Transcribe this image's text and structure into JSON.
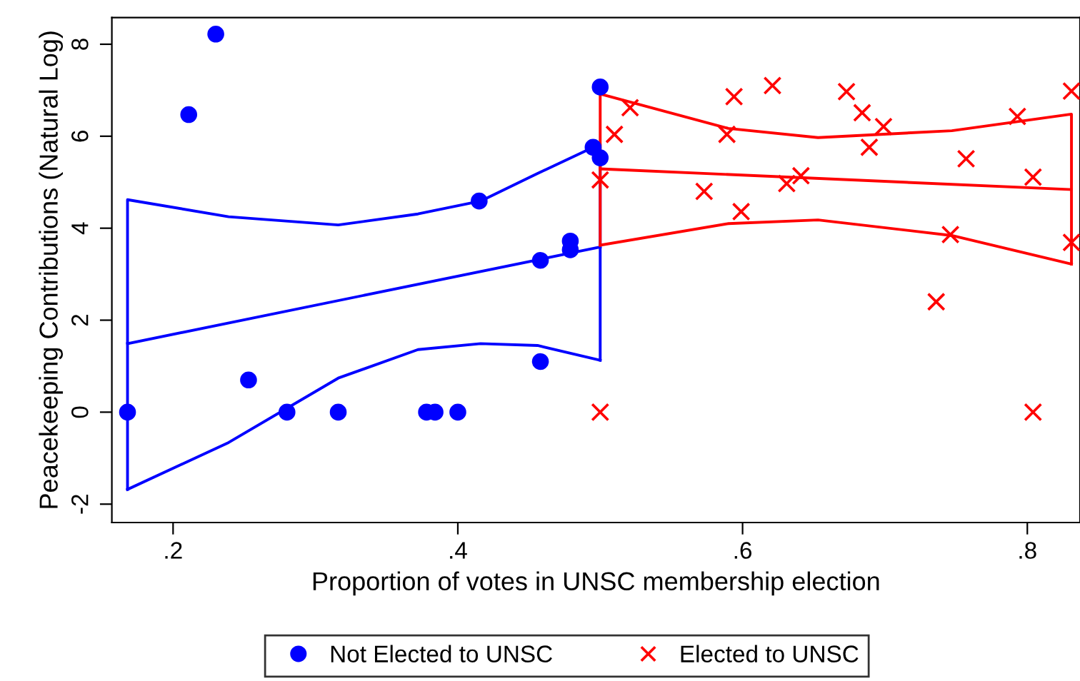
{
  "chart_data": {
    "type": "scatter",
    "xlabel": "Proportion of votes in UNSC membership election",
    "ylabel": "Peacekeeping Contributions (Natural Log)",
    "xlim": [
      0.157,
      0.837
    ],
    "ylim": [
      -2.4,
      8.58
    ],
    "xticks": [
      {
        "value": 0.2,
        "label": ".2"
      },
      {
        "value": 0.4,
        "label": ".4"
      },
      {
        "value": 0.6,
        "label": ".6"
      },
      {
        "value": 0.8,
        "label": ".8"
      }
    ],
    "yticks": [
      {
        "value": -2,
        "label": "-2"
      },
      0,
      2,
      4,
      6,
      8
    ],
    "grid": false,
    "legend": "bottom",
    "series": [
      {
        "name": "Not Elected to UNSC",
        "marker": "circle",
        "color": "#0000ff",
        "x": [
          0.168,
          0.211,
          0.23,
          0.253,
          0.28,
          0.316,
          0.378,
          0.384,
          0.4,
          0.415,
          0.458,
          0.458,
          0.479,
          0.479,
          0.495,
          0.5,
          0.5
        ],
        "values": [
          0,
          6.47,
          8.22,
          0.7,
          0,
          0,
          0,
          0,
          0,
          4.59,
          3.3,
          1.1,
          3.72,
          3.53,
          5.76,
          5.53,
          7.07
        ]
      },
      {
        "name": "Elected to UNSC",
        "marker": "cross",
        "color": "#ff0000",
        "x": [
          0.5,
          0.5,
          0.51,
          0.521,
          0.573,
          0.589,
          0.594,
          0.599,
          0.621,
          0.631,
          0.641,
          0.673,
          0.684,
          0.689,
          0.699,
          0.736,
          0.746,
          0.757,
          0.793,
          0.804,
          0.804,
          0.831,
          0.831
        ],
        "values": [
          5.05,
          0,
          6.04,
          6.62,
          4.8,
          6.04,
          6.86,
          4.36,
          7.1,
          4.97,
          5.14,
          6.97,
          6.51,
          5.76,
          6.21,
          2.4,
          3.86,
          5.51,
          6.43,
          5.11,
          0,
          6.98,
          3.69
        ]
      },
      {
        "type": "line",
        "color": "#0000ff",
        "x": [
          0.168,
          0.5
        ],
        "values": [
          1.49,
          3.59
        ]
      },
      {
        "type": "line",
        "color": "#0000ff",
        "x": [
          0.168,
          0.168,
          0.239,
          0.316,
          0.372,
          0.416,
          0.456,
          0.5,
          0.5
        ],
        "values": [
          -1.68,
          4.62,
          4.25,
          4.07,
          4.31,
          4.59,
          5.19,
          5.83,
          1.13
        ]
      },
      {
        "type": "line",
        "color": "#0000ff",
        "x": [
          0.168,
          0.239,
          0.316,
          0.372,
          0.416,
          0.456,
          0.5
        ],
        "values": [
          -1.68,
          -0.66,
          0.74,
          1.36,
          1.49,
          1.45,
          1.13
        ]
      },
      {
        "type": "line",
        "color": "#ff0000",
        "x": [
          0.5,
          0.831
        ],
        "values": [
          5.29,
          4.84
        ]
      },
      {
        "type": "line",
        "color": "#ff0000",
        "x": [
          0.5,
          0.5,
          0.59,
          0.653,
          0.747,
          0.831,
          0.831
        ],
        "values": [
          3.63,
          6.92,
          6.17,
          5.97,
          6.12,
          6.48,
          3.22
        ]
      },
      {
        "type": "line",
        "color": "#ff0000",
        "x": [
          0.5,
          0.59,
          0.653,
          0.747,
          0.831
        ],
        "values": [
          3.63,
          4.1,
          4.18,
          3.84,
          3.22
        ]
      }
    ]
  }
}
